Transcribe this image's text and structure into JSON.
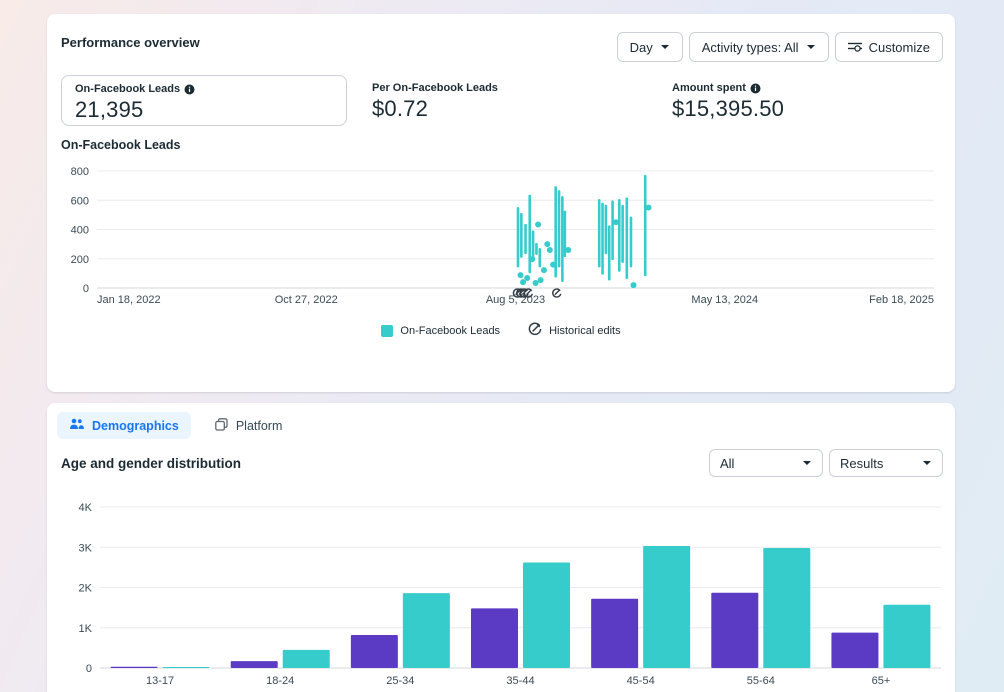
{
  "performance": {
    "title": "Performance overview",
    "controls": {
      "day": "Day",
      "activity_types": "Activity types: All",
      "customize": "Customize"
    },
    "metrics": [
      {
        "label": "On-Facebook Leads",
        "value": "21,395",
        "info": true,
        "selected": true
      },
      {
        "label": "Per On-Facebook Leads",
        "value": "$0.72",
        "info": false,
        "selected": false
      },
      {
        "label": "Amount spent",
        "value": "$15,395.50",
        "info": true,
        "selected": false
      }
    ],
    "chart_title": "On-Facebook Leads",
    "legend": [
      {
        "label": "On-Facebook Leads",
        "swatch": "teal-square"
      },
      {
        "label": "Historical edits",
        "swatch": "history-icon"
      }
    ]
  },
  "breakdown": {
    "tabs": [
      {
        "label": "Demographics",
        "icon": "people-icon",
        "active": true
      },
      {
        "label": "Platform",
        "icon": "windows-icon",
        "active": false
      }
    ],
    "title": "Age and gender distribution",
    "filters": [
      {
        "value": "All"
      },
      {
        "value": "Results"
      }
    ]
  },
  "icons": {
    "caret": "chevron-down triangle",
    "info": "filled circle with i",
    "customize": "slider-lines with gear",
    "people": "two person silhouettes",
    "platform": "overlapping squares",
    "historical_edit": "circle with diagonal slash"
  },
  "colors": {
    "teal": "#35cccb",
    "purple": "#5b3bc4",
    "tab_blue": "#1877f2",
    "grid": "#e9ebee",
    "grid_zero": "#d4d7db",
    "axis_text": "#3a4a54",
    "marker_dark": "#333d45"
  },
  "chart_data": [
    {
      "type": "line",
      "title": "On-Facebook Leads",
      "series_name": "On-Facebook Leads",
      "ylabel": "",
      "xlabel": "",
      "ylim": [
        0,
        800
      ],
      "yticks": [
        0,
        200,
        400,
        600,
        800
      ],
      "ytick_labels": [
        "0",
        "200",
        "400",
        "600",
        "800"
      ],
      "xtick_labels": [
        "Jan 18, 2022",
        "Oct 27, 2022",
        "Aug 5, 2023",
        "May 13, 2024",
        "Feb 18, 2025"
      ],
      "grid": true,
      "legend_position": "bottom-center",
      "note": "Daily leads; activity only between ~Jul 2023 and ~Jun 2024 shown as vertical spikes (x = fraction of axis from Jan 18 2022 to Feb 18 2025, values estimated from gridlines)",
      "spikes": [
        {
          "x": 0.503,
          "low": 150,
          "high": 545
        },
        {
          "x": 0.507,
          "low": 215,
          "high": 505
        },
        {
          "x": 0.512,
          "low": 240,
          "high": 430
        },
        {
          "x": 0.517,
          "low": 110,
          "high": 630
        },
        {
          "x": 0.521,
          "low": 205,
          "high": 385
        },
        {
          "x": 0.525,
          "low": 235,
          "high": 300
        },
        {
          "x": 0.529,
          "low": 150,
          "high": 265
        },
        {
          "x": 0.548,
          "low": 80,
          "high": 687
        },
        {
          "x": 0.552,
          "low": 150,
          "high": 660
        },
        {
          "x": 0.556,
          "low": 50,
          "high": 620
        },
        {
          "x": 0.559,
          "low": 220,
          "high": 520
        },
        {
          "x": 0.6,
          "low": 150,
          "high": 600
        },
        {
          "x": 0.604,
          "low": 100,
          "high": 575
        },
        {
          "x": 0.608,
          "low": 240,
          "high": 560
        },
        {
          "x": 0.612,
          "low": 60,
          "high": 420
        },
        {
          "x": 0.616,
          "low": 200,
          "high": 590
        },
        {
          "x": 0.624,
          "low": 120,
          "high": 600
        },
        {
          "x": 0.628,
          "low": 180,
          "high": 560
        },
        {
          "x": 0.633,
          "low": 70,
          "high": 610
        },
        {
          "x": 0.638,
          "low": 150,
          "high": 480
        },
        {
          "x": 0.655,
          "low": 90,
          "high": 765
        }
      ],
      "points": [
        {
          "x": 0.506,
          "y": 88
        },
        {
          "x": 0.509,
          "y": 40
        },
        {
          "x": 0.514,
          "y": 68
        },
        {
          "x": 0.52,
          "y": 197
        },
        {
          "x": 0.524,
          "y": 34
        },
        {
          "x": 0.527,
          "y": 434
        },
        {
          "x": 0.53,
          "y": 54
        },
        {
          "x": 0.534,
          "y": 122
        },
        {
          "x": 0.538,
          "y": 300
        },
        {
          "x": 0.541,
          "y": 260
        },
        {
          "x": 0.545,
          "y": 160
        },
        {
          "x": 0.563,
          "y": 260
        },
        {
          "x": 0.62,
          "y": 450
        },
        {
          "x": 0.641,
          "y": 20
        },
        {
          "x": 0.659,
          "y": 550
        }
      ],
      "historical_edit_markers_x": [
        0.502,
        0.506,
        0.51,
        0.515,
        0.549
      ]
    },
    {
      "type": "bar",
      "title": "Age and gender distribution",
      "categories": [
        "13-17",
        "18-24",
        "25-34",
        "35-44",
        "45-54",
        "55-64",
        "65+"
      ],
      "series": [
        {
          "name": "series_1_purple",
          "color": "#5b3bc4",
          "values": [
            30,
            170,
            820,
            1480,
            1720,
            1870,
            880
          ]
        },
        {
          "name": "series_2_teal",
          "color": "#35cccb",
          "values": [
            25,
            450,
            1860,
            2620,
            3030,
            2980,
            1570
          ]
        }
      ],
      "ylim": [
        0,
        4000
      ],
      "yticks": [
        0,
        1000,
        2000,
        3000,
        4000
      ],
      "ytick_labels": [
        "0",
        "1K",
        "2K",
        "3K",
        "4K"
      ],
      "grid": true,
      "legend_position": "none-visible (cut off)"
    }
  ]
}
